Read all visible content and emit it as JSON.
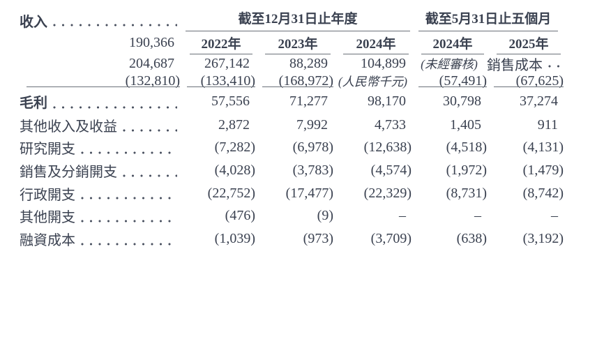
{
  "table": {
    "header": {
      "groups": [
        {
          "title": "截至12月31日止年度",
          "years": [
            "2022年",
            "2023年",
            "2024年"
          ]
        },
        {
          "title": "截至5月31日止五個月",
          "years": [
            "2024年",
            "2025年"
          ]
        }
      ],
      "unaudited_note": "(未經審核)",
      "currency_note": "(人民幣千元)"
    },
    "rows": [
      {
        "label": "收入",
        "bold": true,
        "underline_below": false,
        "values": [
          "190,366",
          "204,687",
          "267,142",
          "88,289",
          "104,899"
        ]
      },
      {
        "label": "銷售成本",
        "bold": false,
        "underline_below": true,
        "values": [
          "(132,810)",
          "(133,410)",
          "(168,972)",
          "(57,491)",
          "(67,625)"
        ]
      },
      {
        "label": "毛利",
        "bold": true,
        "underline_below": false,
        "values": [
          "57,556",
          "71,277",
          "98,170",
          "30,798",
          "37,274"
        ]
      },
      {
        "label": "其他收入及收益",
        "bold": false,
        "underline_below": false,
        "values": [
          "2,872",
          "7,992",
          "4,733",
          "1,405",
          "911"
        ]
      },
      {
        "label": "研究開支",
        "bold": false,
        "underline_below": false,
        "values": [
          "(7,282)",
          "(6,978)",
          "(12,638)",
          "(4,518)",
          "(4,131)"
        ]
      },
      {
        "label": "銷售及分銷開支",
        "bold": false,
        "underline_below": false,
        "values": [
          "(4,028)",
          "(3,783)",
          "(4,574)",
          "(1,972)",
          "(1,479)"
        ]
      },
      {
        "label": "行政開支",
        "bold": false,
        "underline_below": false,
        "values": [
          "(22,752)",
          "(17,477)",
          "(22,329)",
          "(8,731)",
          "(8,742)"
        ]
      },
      {
        "label": "其他開支",
        "bold": false,
        "underline_below": false,
        "values": [
          "(476)",
          "(9)",
          "–",
          "–",
          "–"
        ]
      },
      {
        "label": "融資成本",
        "bold": false,
        "underline_below": false,
        "values": [
          "(1,039)",
          "(973)",
          "(3,709)",
          "(638)",
          "(3,192)"
        ]
      }
    ],
    "colors": {
      "text": "#3a4150",
      "rule": "#6a7078"
    }
  }
}
